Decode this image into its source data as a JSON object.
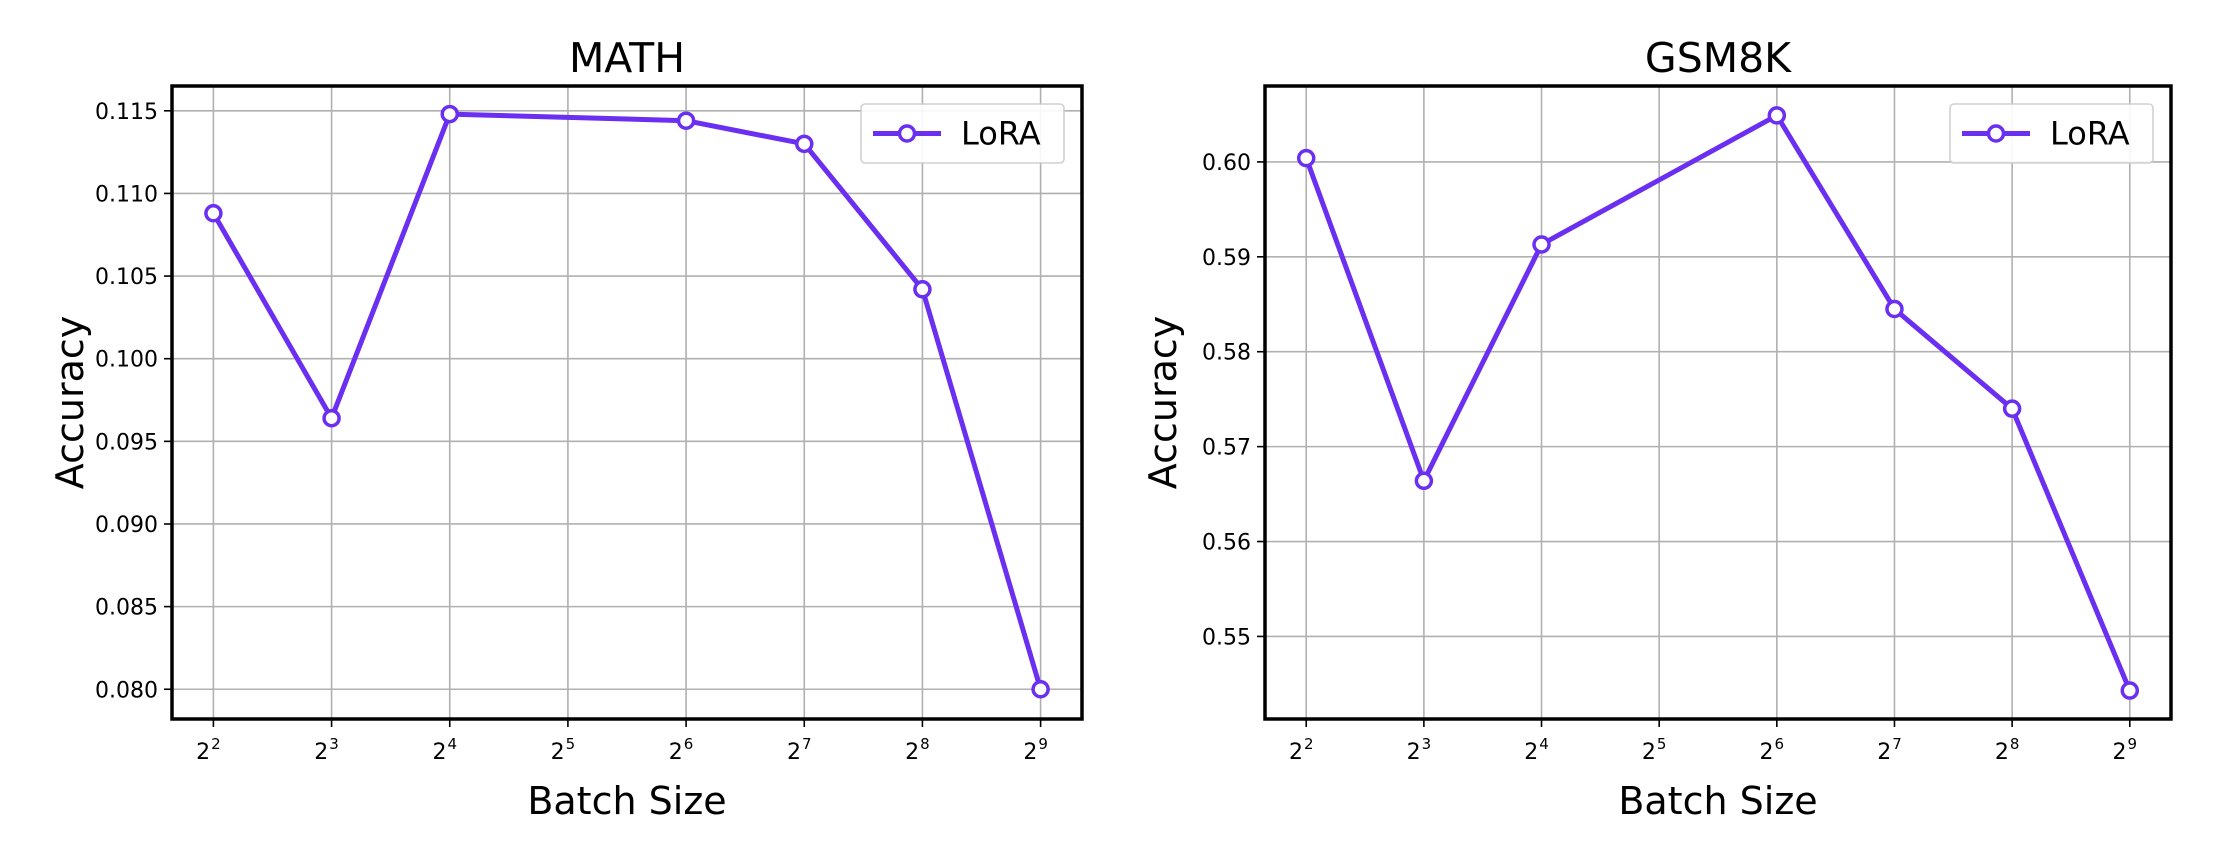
{
  "chart_data": [
    {
      "type": "line",
      "title": "MATH",
      "xlabel": "Batch Size",
      "ylabel": "Accuracy",
      "x_scale": "log2",
      "x": [
        4,
        8,
        16,
        32,
        64,
        128,
        256,
        512
      ],
      "x_tick_labels": [
        {
          "base": "2",
          "exp": "2"
        },
        {
          "base": "2",
          "exp": "3"
        },
        {
          "base": "2",
          "exp": "4"
        },
        {
          "base": "2",
          "exp": "5"
        },
        {
          "base": "2",
          "exp": "6"
        },
        {
          "base": "2",
          "exp": "7"
        },
        {
          "base": "2",
          "exp": "8"
        },
        {
          "base": "2",
          "exp": "9"
        }
      ],
      "series": [
        {
          "name": "LoRA",
          "x": [
            4,
            8,
            16,
            64,
            128,
            256,
            512
          ],
          "values": [
            0.1088,
            0.0964,
            0.1148,
            0.1144,
            0.113,
            0.1042,
            0.08
          ]
        }
      ],
      "ylim": [
        0.0782,
        0.1165
      ],
      "y_ticks": [
        0.08,
        0.085,
        0.09,
        0.095,
        0.1,
        0.105,
        0.11,
        0.115
      ],
      "y_tick_labels": [
        "0.080",
        "0.085",
        "0.090",
        "0.095",
        "0.100",
        "0.105",
        "0.110",
        "0.115"
      ],
      "grid": true,
      "legend": "top-right",
      "line_color": "#6a2ff0"
    },
    {
      "type": "line",
      "title": "GSM8K",
      "xlabel": "Batch Size",
      "ylabel": "Accuracy",
      "x_scale": "log2",
      "x": [
        4,
        8,
        16,
        32,
        64,
        128,
        256,
        512
      ],
      "x_tick_labels": [
        {
          "base": "2",
          "exp": "2"
        },
        {
          "base": "2",
          "exp": "3"
        },
        {
          "base": "2",
          "exp": "4"
        },
        {
          "base": "2",
          "exp": "5"
        },
        {
          "base": "2",
          "exp": "6"
        },
        {
          "base": "2",
          "exp": "7"
        },
        {
          "base": "2",
          "exp": "8"
        },
        {
          "base": "2",
          "exp": "9"
        }
      ],
      "series": [
        {
          "name": "LoRA",
          "x": [
            4,
            8,
            16,
            64,
            128,
            256,
            512
          ],
          "values": [
            0.6004,
            0.5664,
            0.5913,
            0.6049,
            0.5845,
            0.574,
            0.5443
          ]
        }
      ],
      "ylim": [
        0.5413,
        0.608
      ],
      "y_ticks": [
        0.55,
        0.56,
        0.57,
        0.58,
        0.59,
        0.6
      ],
      "y_tick_labels": [
        "0.55",
        "0.56",
        "0.57",
        "0.58",
        "0.59",
        "0.60"
      ],
      "grid": true,
      "legend": "top-right",
      "line_color": "#6a2ff0"
    }
  ]
}
